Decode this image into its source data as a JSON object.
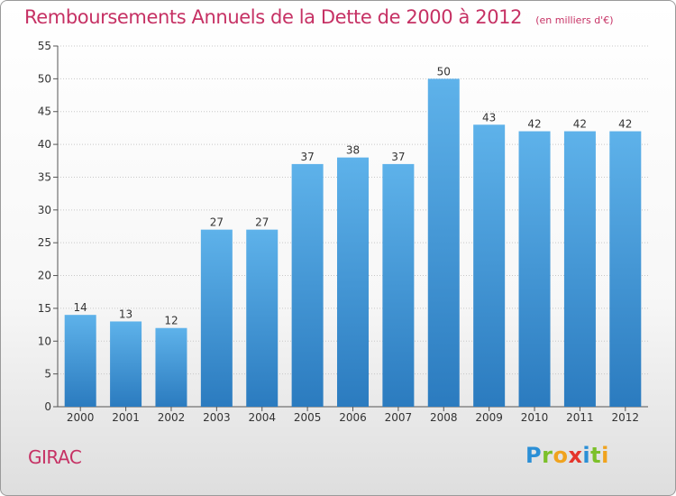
{
  "header": {
    "title": "Remboursements Annuels de la Dette de 2000 à 2012",
    "unit": "(en milliers d'€)"
  },
  "footer": {
    "commune": "GIRAC",
    "brand": "Proxiti",
    "brand_letters": [
      {
        "ch": "P",
        "color": "#2b8fd6"
      },
      {
        "ch": "r",
        "color": "#7cc02a"
      },
      {
        "ch": "o",
        "color": "#f0a31e"
      },
      {
        "ch": "x",
        "color": "#e5352b"
      },
      {
        "ch": "i",
        "color": "#2b8fd6"
      },
      {
        "ch": "t",
        "color": "#7cc02a"
      },
      {
        "ch": "i",
        "color": "#f0a31e"
      }
    ]
  },
  "colors": {
    "bar_top": "#5eb2ea",
    "bar_bottom": "#2b7bbf",
    "title": "#c63164",
    "axis": "#555555",
    "grid": "#c8c8c8"
  },
  "chart_data": {
    "type": "bar",
    "title": "Remboursements Annuels de la Dette de 2000 à 2012",
    "subtitle": "(en milliers d'€)",
    "categories": [
      "2000",
      "2001",
      "2002",
      "2003",
      "2004",
      "2005",
      "2006",
      "2007",
      "2008",
      "2009",
      "2010",
      "2011",
      "2012"
    ],
    "values": [
      14,
      13,
      12,
      27,
      27,
      37,
      38,
      37,
      50,
      43,
      42,
      42,
      42
    ],
    "ylim": [
      0,
      55
    ],
    "yticks": [
      0,
      5,
      10,
      15,
      20,
      25,
      30,
      35,
      40,
      45,
      50,
      55
    ],
    "grid": true,
    "legend": "none"
  }
}
